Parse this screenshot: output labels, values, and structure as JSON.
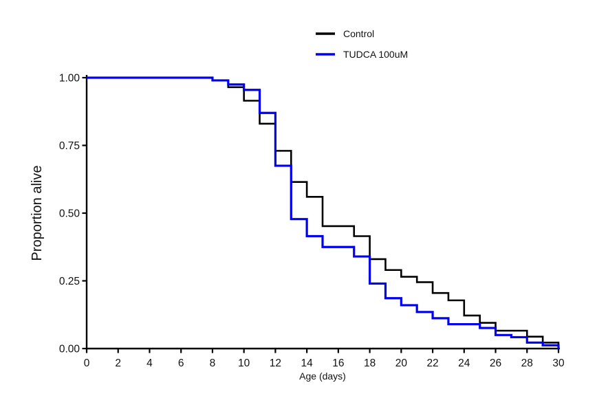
{
  "figure": {
    "background": "#ffffff",
    "axis_color": "#000000",
    "legend": {
      "position": "top-center",
      "items": [
        {
          "label": "Control",
          "color": "#000000"
        },
        {
          "label": "TUDCA 100uM",
          "color": "#0000F0"
        }
      ]
    }
  },
  "chart_data": {
    "type": "line",
    "subtype": "kaplan-meier-survival-step",
    "title": "",
    "xlabel": "Age (days)",
    "ylabel": "Proportion alive",
    "xlim": [
      0,
      30
    ],
    "ylim": [
      0,
      1
    ],
    "grid": false,
    "legend_position": "top-center",
    "xticks": [
      0,
      2,
      4,
      6,
      8,
      10,
      12,
      14,
      16,
      18,
      20,
      22,
      24,
      26,
      28,
      30
    ],
    "yticks": [
      {
        "label": "0.00",
        "value": 0
      },
      {
        "label": "0.25",
        "value": 0.25
      },
      {
        "label": "0.50",
        "value": 0.5
      },
      {
        "label": "0.75",
        "value": 0.75
      },
      {
        "label": "1.00",
        "value": 1
      }
    ],
    "series": [
      {
        "name": "Control",
        "color": "#000000",
        "line_width": 2.6,
        "steps": [
          [
            0,
            1.0
          ],
          [
            8,
            0.99
          ],
          [
            9,
            0.965
          ],
          [
            10,
            0.915
          ],
          [
            11,
            0.83
          ],
          [
            12,
            0.73
          ],
          [
            13,
            0.615
          ],
          [
            14,
            0.56
          ],
          [
            15,
            0.452
          ],
          [
            17,
            0.415
          ],
          [
            18,
            0.33
          ],
          [
            19,
            0.29
          ],
          [
            20,
            0.265
          ],
          [
            21,
            0.245
          ],
          [
            22,
            0.205
          ],
          [
            23,
            0.178
          ],
          [
            24,
            0.122
          ],
          [
            25,
            0.095
          ],
          [
            26,
            0.066
          ],
          [
            28,
            0.044
          ],
          [
            29,
            0.022
          ],
          [
            30,
            0.0
          ]
        ]
      },
      {
        "name": "TUDCA 100uM",
        "color": "#0000F0",
        "line_width": 3.2,
        "steps": [
          [
            0,
            1.0
          ],
          [
            8,
            0.99
          ],
          [
            9,
            0.975
          ],
          [
            10,
            0.955
          ],
          [
            11,
            0.87
          ],
          [
            12,
            0.675
          ],
          [
            13,
            0.478
          ],
          [
            14,
            0.415
          ],
          [
            15,
            0.375
          ],
          [
            17,
            0.34
          ],
          [
            18,
            0.24
          ],
          [
            19,
            0.186
          ],
          [
            20,
            0.16
          ],
          [
            21,
            0.135
          ],
          [
            22,
            0.112
          ],
          [
            23,
            0.09
          ],
          [
            25,
            0.076
          ],
          [
            26,
            0.05
          ],
          [
            27,
            0.042
          ],
          [
            28,
            0.022
          ],
          [
            29,
            0.012
          ],
          [
            30,
            0.0
          ]
        ]
      }
    ]
  }
}
